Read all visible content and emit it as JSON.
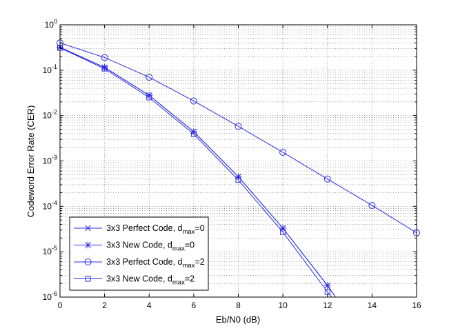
{
  "chart_data": {
    "type": "line",
    "xlabel": "Eb/N0 (dB)",
    "ylabel": "Codeword Error Rate (CER)",
    "xlim": [
      0,
      16
    ],
    "ylim": [
      1e-06,
      1
    ],
    "yscale": "log",
    "grid": true,
    "legend_position": "bottom-left",
    "x_ticks": [
      "0",
      "2",
      "4",
      "6",
      "8",
      "10",
      "12",
      "14",
      "16"
    ],
    "y_ticks": [
      {
        "base": "10",
        "exp": "0"
      },
      {
        "base": "10",
        "exp": "-1"
      },
      {
        "base": "10",
        "exp": "-2"
      },
      {
        "base": "10",
        "exp": "-3"
      },
      {
        "base": "10",
        "exp": "-4"
      },
      {
        "base": "10",
        "exp": "-5"
      },
      {
        "base": "10",
        "exp": "-6"
      }
    ],
    "series_color": "#2a2ae6",
    "series": [
      {
        "label_main": "3x3 Perfect Code, d",
        "label_sub": "max",
        "label_tail": "=0",
        "marker": "x",
        "x": [
          0,
          2,
          4,
          6,
          8,
          10,
          12,
          12.5
        ],
        "y": [
          0.32,
          0.115,
          0.028,
          0.0044,
          0.00045,
          3.3e-05,
          1.8e-06,
          8e-07
        ]
      },
      {
        "label_main": "3x3 New Code, d",
        "label_sub": "max",
        "label_tail": "=0",
        "marker": "star",
        "x": [
          0,
          2,
          4,
          6,
          8,
          10,
          12,
          12.5
        ],
        "y": [
          0.32,
          0.115,
          0.028,
          0.0044,
          0.00045,
          3.3e-05,
          1.8e-06,
          8e-07
        ]
      },
      {
        "label_main": "3x3 Perfect Code, d",
        "label_sub": "max",
        "label_tail": "=2",
        "marker": "circle",
        "x": [
          0,
          2,
          4,
          6,
          8,
          10,
          12,
          14,
          16
        ],
        "y": [
          0.4,
          0.19,
          0.07,
          0.021,
          0.0058,
          0.00155,
          0.0004,
          0.000105,
          2.6e-05
        ]
      },
      {
        "label_main": "3x3 New Code, d",
        "label_sub": "max",
        "label_tail": "=2",
        "marker": "square",
        "x": [
          0,
          2,
          4,
          6,
          8,
          10,
          12,
          12.35
        ],
        "y": [
          0.31,
          0.108,
          0.025,
          0.0039,
          0.00038,
          2.7e-05,
          1.3e-06,
          8e-07
        ]
      }
    ]
  }
}
